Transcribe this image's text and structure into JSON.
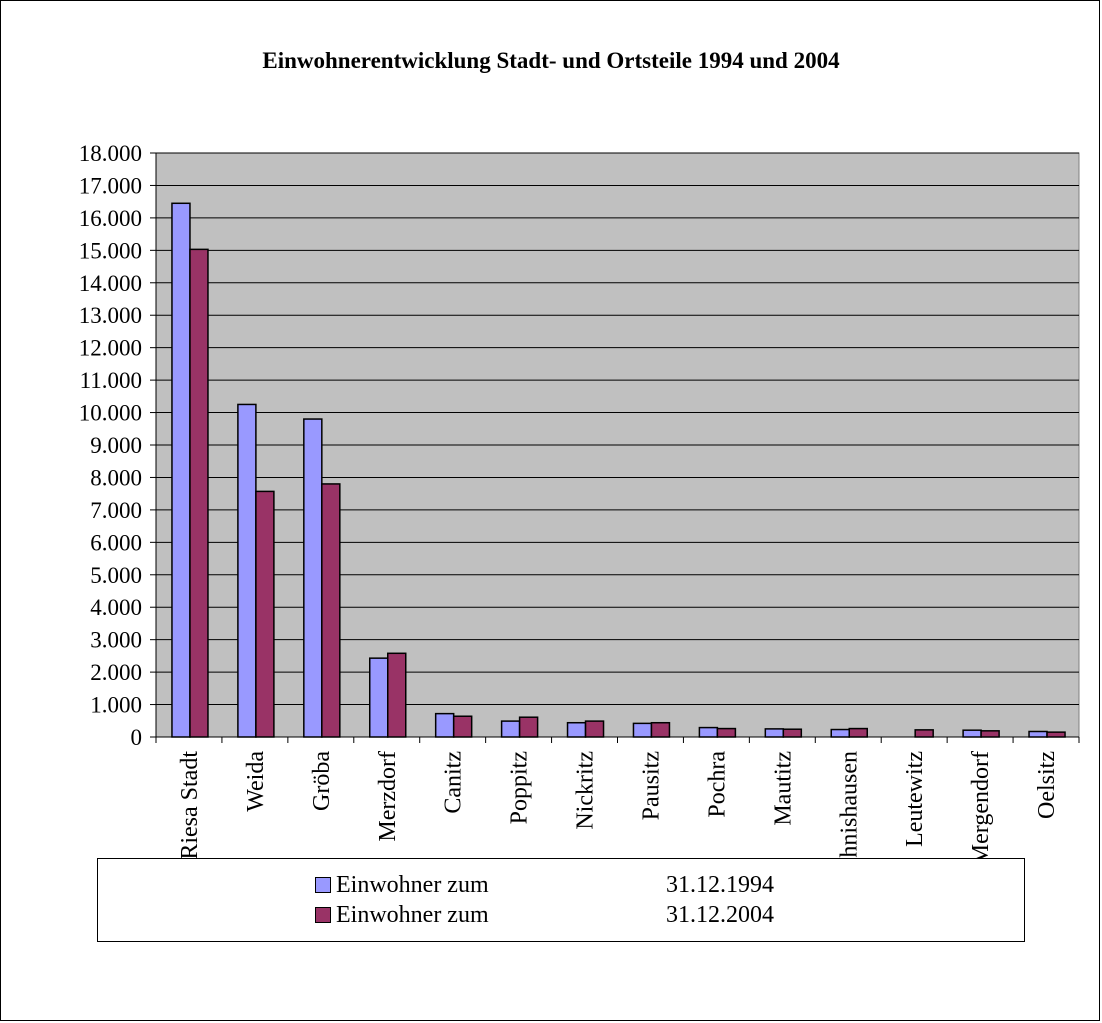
{
  "chart_data": {
    "type": "bar",
    "title": "Einwohnerentwicklung Stadt- und Ortsteile 1994 und 2004",
    "xlabel": "",
    "ylabel": "",
    "ylim": [
      0,
      18000
    ],
    "y_ticks": [
      "0",
      "1.000",
      "2.000",
      "3.000",
      "4.000",
      "5.000",
      "6.000",
      "7.000",
      "8.000",
      "9.000",
      "10.000",
      "11.000",
      "12.000",
      "13.000",
      "14.000",
      "15.000",
      "16.000",
      "17.000",
      "18.000"
    ],
    "grid": true,
    "legend_position": "bottom",
    "plot_background": "#c0c0c0",
    "categories": [
      "Riesa Stadt",
      "Weida",
      "Gröba",
      "Merzdorf",
      "Canitz",
      "Poppitz",
      "Nickritz",
      "Pausitz",
      "Pochra",
      "Mautitz",
      "Jahnishausen",
      "Leutewitz",
      "Mergendorf",
      "Oelsitz"
    ],
    "series": [
      {
        "name": "Einwohner zum",
        "date": "31.12.1994",
        "color": "#9999ff",
        "values": [
          16450,
          10250,
          9800,
          2430,
          720,
          490,
          440,
          420,
          290,
          250,
          230,
          0,
          210,
          170
        ]
      },
      {
        "name": "Einwohner zum",
        "date": "31.12.2004",
        "color": "#993366",
        "values": [
          15030,
          7570,
          7800,
          2580,
          640,
          610,
          490,
          440,
          260,
          240,
          260,
          220,
          190,
          150
        ]
      }
    ]
  }
}
